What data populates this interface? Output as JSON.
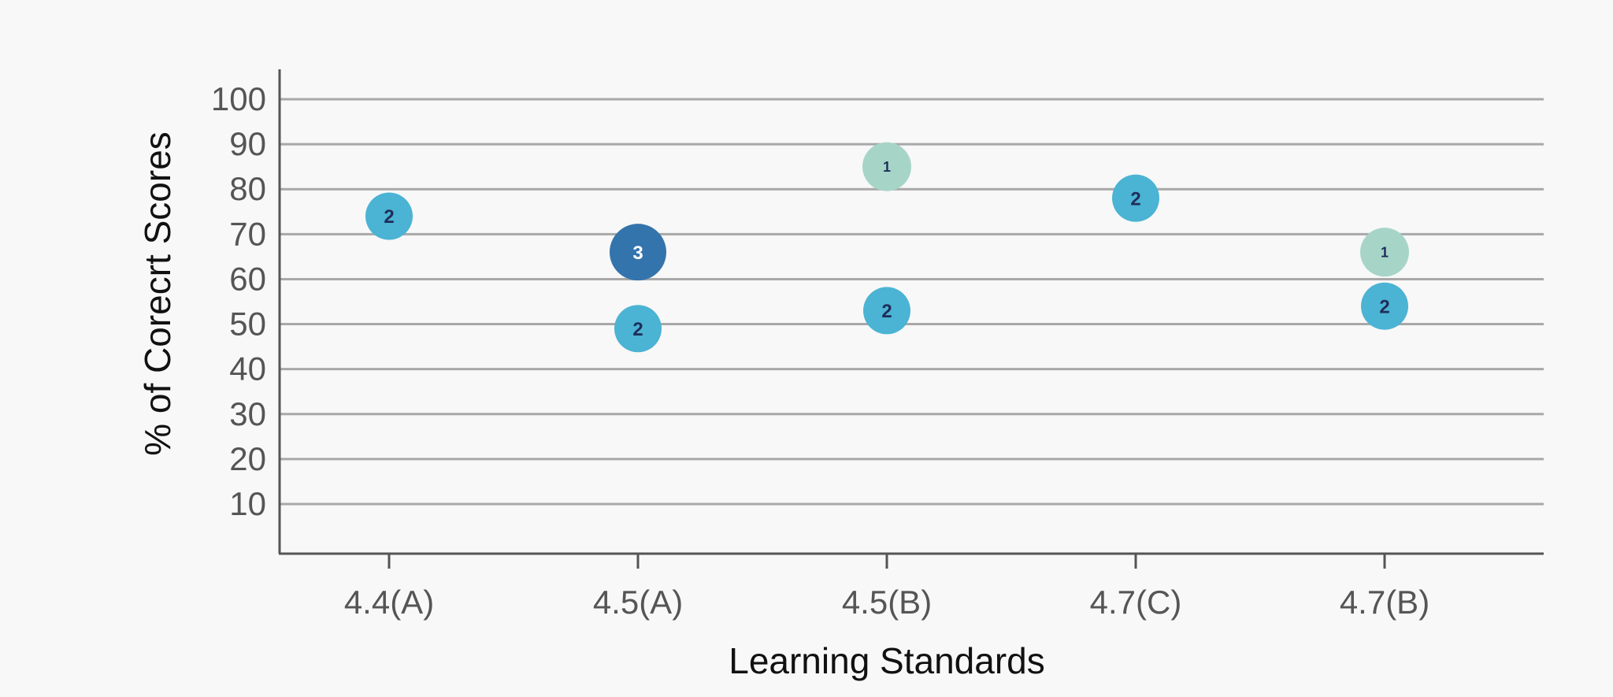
{
  "chart_data": {
    "type": "scatter",
    "title": "",
    "xlabel": "Learning Standards",
    "ylabel": "% of Corecrt Scores",
    "categories": [
      "4.4(A)",
      "4.5(A)",
      "4.5(B)",
      "4.7(C)",
      "4.7(B)"
    ],
    "yticks": [
      10,
      20,
      30,
      40,
      50,
      60,
      70,
      80,
      90,
      100
    ],
    "ylim": [
      0,
      110
    ],
    "grid": true,
    "points": [
      {
        "category": "4.4(A)",
        "y": 74,
        "count": "2",
        "color": "#4bb3d3"
      },
      {
        "category": "4.5(A)",
        "y": 66,
        "count": "3",
        "color": "#3474ad"
      },
      {
        "category": "4.5(A)",
        "y": 49,
        "count": "2",
        "color": "#4bb3d3"
      },
      {
        "category": "4.5(B)",
        "y": 85,
        "count": "1",
        "color": "#a6d5c8"
      },
      {
        "category": "4.5(B)",
        "y": 53,
        "count": "2",
        "color": "#4bb3d3"
      },
      {
        "category": "4.7(C)",
        "y": 78,
        "count": "2",
        "color": "#4bb3d3"
      },
      {
        "category": "4.7(B)",
        "y": 66,
        "count": "1",
        "color": "#a6d5c8"
      },
      {
        "category": "4.7(B)",
        "y": 54,
        "count": "2",
        "color": "#4bb3d3"
      }
    ]
  }
}
